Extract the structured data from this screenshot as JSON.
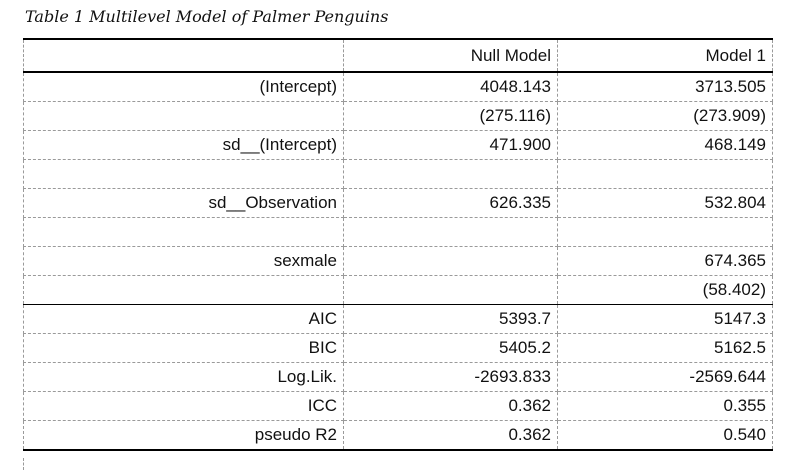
{
  "caption": "Table 1 Multilevel Model of Palmer Penguins",
  "header": [
    "",
    "Null Model",
    "Model 1"
  ],
  "rows": [
    {
      "label": "(Intercept)",
      "null": "4048.143",
      "m1": "3713.505"
    },
    {
      "label": "",
      "null": "(275.116)",
      "m1": "(273.909)"
    },
    {
      "label": "sd__(Intercept)",
      "null": "471.900",
      "m1": "468.149"
    },
    {
      "label": "",
      "null": "",
      "m1": ""
    },
    {
      "label": "sd__Observation",
      "null": "626.335",
      "m1": "532.804"
    },
    {
      "label": "",
      "null": "",
      "m1": ""
    },
    {
      "label": "sexmale",
      "null": "",
      "m1": "674.365"
    },
    {
      "label": "",
      "null": "",
      "m1": "(58.402)"
    }
  ],
  "stats": [
    {
      "label": "AIC",
      "null": "5393.7",
      "m1": "5147.3"
    },
    {
      "label": "BIC",
      "null": "5405.2",
      "m1": "5162.5"
    },
    {
      "label": "Log.Lik.",
      "null": "-2693.833",
      "m1": "-2569.644"
    },
    {
      "label": "ICC",
      "null": "0.362",
      "m1": "0.355"
    },
    {
      "label": "pseudo R2",
      "null": "0.362",
      "m1": "0.540"
    }
  ]
}
